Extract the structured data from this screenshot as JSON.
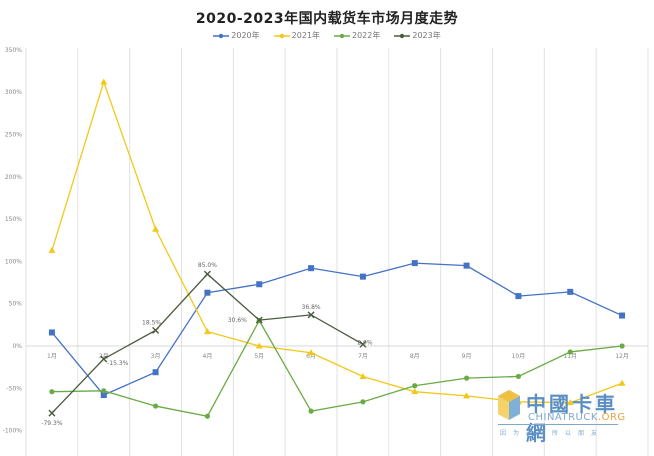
{
  "chart_data": {
    "type": "line",
    "title": "2020-2023年国内载货车市场月度走势",
    "xlabel": "",
    "ylabel": "",
    "categories": [
      "1月",
      "2月",
      "3月",
      "4月",
      "5月",
      "6月",
      "7月",
      "8月",
      "9月",
      "10月",
      "11月",
      "12月"
    ],
    "ylim": [
      -100,
      350
    ],
    "yticks": [
      "350%",
      "300%",
      "250%",
      "200%",
      "150%",
      "100%",
      "50%",
      "0%",
      "-50%",
      "-100%"
    ],
    "grid": true,
    "legend_position": "top",
    "series": [
      {
        "name": "2020年",
        "color": "#4472c4",
        "marker": "square",
        "values": [
          16,
          -58,
          -31,
          63,
          73,
          92,
          82,
          98,
          95,
          59,
          64,
          36
        ]
      },
      {
        "name": "2021年",
        "color": "#f2c81a",
        "marker": "triangle",
        "values": [
          113,
          312,
          138,
          17,
          0,
          -8,
          -36,
          -54,
          -59,
          -66,
          -67,
          -44
        ]
      },
      {
        "name": "2022年",
        "color": "#6aab46",
        "marker": "diamond",
        "values": [
          -54,
          -53,
          -71,
          -83,
          30,
          -77,
          -66,
          -47,
          -38,
          -36,
          -7,
          0
        ]
      },
      {
        "name": "2023年",
        "color": "#4a5a3e",
        "marker": "x",
        "values": [
          -79.3,
          -15.3,
          18.5,
          85.0,
          30.6,
          36.8,
          2.0
        ]
      }
    ],
    "annotations": [
      {
        "series": "2023年",
        "month": "1月",
        "label": "-79.3%"
      },
      {
        "series": "2023年",
        "month": "2月",
        "label": "-15.3%"
      },
      {
        "series": "2023年",
        "month": "3月",
        "label": "18.5%"
      },
      {
        "series": "2023年",
        "month": "4月",
        "label": "85.0%"
      },
      {
        "series": "2023年",
        "month": "5月",
        "label": "30.6%"
      },
      {
        "series": "2023年",
        "month": "6月",
        "label": "36.8%"
      },
      {
        "series": "2023年",
        "month": "7月",
        "label": "2.0%"
      }
    ]
  },
  "watermark": {
    "brand_cn": "中國卡車網",
    "brand_en": "CHINATRUCK",
    "brand_en_suffix": ".ORG",
    "slogan": "因为卡车所以朋友"
  }
}
